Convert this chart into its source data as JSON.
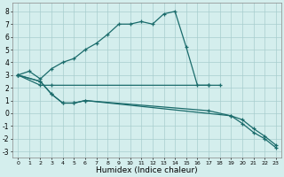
{
  "xlabel": "Humidex (Indice chaleur)",
  "bg_color": "#d4eeed",
  "line_color": "#1a6b6b",
  "grid_color": "#a8cece",
  "xlim": [
    -0.5,
    23.5
  ],
  "ylim": [
    -3.5,
    8.7
  ],
  "xticks": [
    0,
    1,
    2,
    3,
    4,
    5,
    6,
    7,
    8,
    9,
    10,
    11,
    12,
    13,
    14,
    15,
    16,
    17,
    18,
    19,
    20,
    21,
    22,
    23
  ],
  "yticks": [
    -3,
    -2,
    -1,
    0,
    1,
    2,
    3,
    4,
    5,
    6,
    7,
    8
  ],
  "series": [
    {
      "x": [
        0,
        1,
        2,
        3,
        4,
        5,
        6,
        7,
        8,
        9,
        10,
        11,
        12,
        13,
        14,
        15,
        16,
        17,
        18
      ],
      "y": [
        3.0,
        3.3,
        2.7,
        3.5,
        4.0,
        4.3,
        5.0,
        5.5,
        6.2,
        7.0,
        7.0,
        7.2,
        7.0,
        7.8,
        8.0,
        5.2,
        2.2,
        2.2,
        2.2
      ]
    },
    {
      "x": [
        0,
        2,
        3,
        17
      ],
      "y": [
        3.0,
        2.2,
        2.2,
        2.2
      ]
    },
    {
      "x": [
        0,
        2,
        3,
        4,
        5,
        6,
        17,
        19,
        20,
        21,
        22,
        23
      ],
      "y": [
        3.0,
        2.5,
        1.5,
        0.8,
        0.8,
        1.0,
        0.2,
        -0.2,
        -0.5,
        -1.2,
        -1.8,
        -2.5
      ]
    },
    {
      "x": [
        0,
        2,
        3,
        4,
        5,
        6,
        19,
        20,
        21,
        22,
        23
      ],
      "y": [
        3.0,
        2.5,
        1.5,
        0.8,
        0.8,
        1.0,
        -0.2,
        -0.8,
        -1.5,
        -2.0,
        -2.7
      ]
    }
  ]
}
